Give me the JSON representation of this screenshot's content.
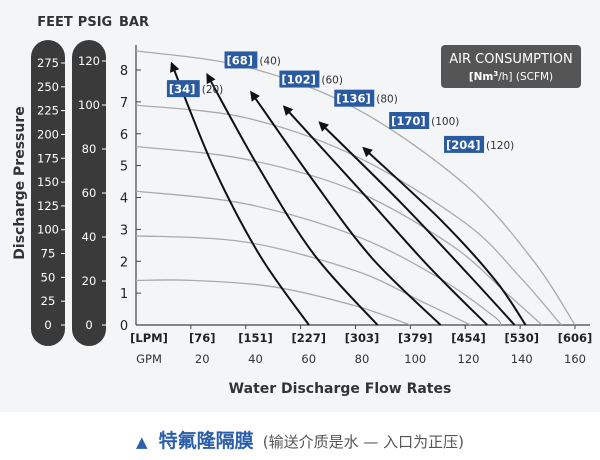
{
  "chart_data": {
    "type": "line",
    "unit_headers": [
      "FEET",
      "PSIG",
      "BAR"
    ],
    "ylabel": "Discharge Pressure",
    "xlabel": "Water Discharge Flow Rates",
    "yticks_bar": [
      0,
      1,
      2,
      3,
      4,
      5,
      6,
      7,
      8
    ],
    "yticks_feet": [
      "275",
      "250",
      "225",
      "200",
      "175",
      "150",
      "125",
      "100",
      "75",
      "50",
      "25",
      "0"
    ],
    "yticks_psig": [
      "120",
      "100",
      "80",
      "60",
      "40",
      "20",
      "0"
    ],
    "xticks_lpm": [
      "[LPM]",
      "[76]",
      "[151]",
      "[227]",
      "[303]",
      "[379]",
      "[454]",
      "[530]",
      "[606]"
    ],
    "xticks_gpm": [
      "GPM",
      "20",
      "40",
      "60",
      "80",
      "100",
      "120",
      "140",
      "160"
    ],
    "xlim_gpm": [
      0,
      160
    ],
    "ylim_bar": [
      0,
      8.6
    ],
    "legend": {
      "title": "AIR CONSUMPTION",
      "subtitle_pre": "[Nm",
      "subtitle_sup": "3",
      "subtitle_post": "/h] (SCFM)"
    },
    "air_consumption_labels": [
      {
        "nm3h": "[34]",
        "scfm": "(20)",
        "x": 12,
        "y": 7.4
      },
      {
        "nm3h": "[68]",
        "scfm": "(40)",
        "x": 33,
        "y": 8.3
      },
      {
        "nm3h": "[102]",
        "scfm": "(60)",
        "x": 53,
        "y": 7.7
      },
      {
        "nm3h": "[136]",
        "scfm": "(80)",
        "x": 73,
        "y": 7.1
      },
      {
        "nm3h": "[170]",
        "scfm": "(100)",
        "x": 93,
        "y": 6.4
      },
      {
        "nm3h": "[204]",
        "scfm": "(120)",
        "x": 113,
        "y": 5.65
      }
    ],
    "series_air_consumption": [
      {
        "label_index": 0,
        "points": [
          [
            13,
            8.2
          ],
          [
            28,
            5
          ],
          [
            45,
            2.2
          ],
          [
            63,
            0
          ]
        ]
      },
      {
        "label_index": 1,
        "points": [
          [
            26,
            7.85
          ],
          [
            45,
            4.9
          ],
          [
            65,
            2.2
          ],
          [
            88,
            0
          ]
        ]
      },
      {
        "label_index": 2,
        "points": [
          [
            42,
            7.3
          ],
          [
            64,
            4.6
          ],
          [
            86,
            2.1
          ],
          [
            111,
            0
          ]
        ]
      },
      {
        "label_index": 3,
        "points": [
          [
            54,
            6.85
          ],
          [
            82,
            4.2
          ],
          [
            106,
            1.9
          ],
          [
            128,
            0
          ]
        ]
      },
      {
        "label_index": 4,
        "points": [
          [
            67,
            6.35
          ],
          [
            97,
            3.8
          ],
          [
            121,
            1.6
          ],
          [
            138,
            0
          ]
        ]
      },
      {
        "label_index": 5,
        "points": [
          [
            83,
            5.55
          ],
          [
            111,
            3.3
          ],
          [
            131,
            1.4
          ],
          [
            142,
            0
          ]
        ]
      }
    ],
    "series_pressure_curves": [
      {
        "points": [
          [
            0,
            8.6
          ],
          [
            40,
            8.1
          ],
          [
            80,
            6.8
          ],
          [
            120,
            4.4
          ],
          [
            145,
            2.0
          ],
          [
            160,
            0
          ]
        ]
      },
      {
        "points": [
          [
            0,
            6.9
          ],
          [
            40,
            6.5
          ],
          [
            80,
            5.3
          ],
          [
            120,
            3.2
          ],
          [
            140,
            1.5
          ],
          [
            155,
            0
          ]
        ]
      },
      {
        "points": [
          [
            0,
            5.6
          ],
          [
            40,
            5.2
          ],
          [
            80,
            4.2
          ],
          [
            115,
            2.5
          ],
          [
            135,
            1.0
          ],
          [
            148,
            0
          ]
        ]
      },
      {
        "points": [
          [
            0,
            4.2
          ],
          [
            40,
            3.8
          ],
          [
            80,
            2.8
          ],
          [
            110,
            1.5
          ],
          [
            130,
            0.3
          ],
          [
            133,
            0
          ]
        ]
      },
      {
        "points": [
          [
            0,
            2.8
          ],
          [
            40,
            2.6
          ],
          [
            80,
            1.7
          ],
          [
            105,
            0.7
          ],
          [
            122,
            0
          ]
        ]
      },
      {
        "points": [
          [
            0,
            1.4
          ],
          [
            20,
            1.4
          ],
          [
            50,
            1.2
          ],
          [
            80,
            0.6
          ],
          [
            100,
            0
          ]
        ]
      }
    ],
    "colors": {
      "column": "#3a3a3a",
      "label_box": "#2a5aa0",
      "legend_box": "#555555",
      "air_line": "#111111",
      "pressure_line": "#aaaaaa",
      "caption": "#2b5faa"
    }
  },
  "caption": {
    "main": "特氟隆隔膜",
    "sub": "(输送介质是水 — 入口为正压)"
  }
}
